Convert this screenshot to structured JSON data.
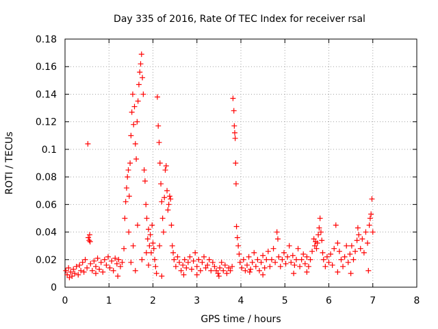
{
  "chart_data": {
    "type": "scatter",
    "title": "Day 335 of 2016, Rate Of TEC Index for receiver rsal",
    "xlabel": "GPS time / hours",
    "ylabel": "ROTI / TECUs",
    "xlim": [
      0,
      8
    ],
    "ylim": [
      0,
      0.18
    ],
    "xticks": [
      "0",
      "1",
      "2",
      "3",
      "4",
      "5",
      "6",
      "7",
      "8"
    ],
    "yticks": [
      "0",
      "0.02",
      "0.04",
      "0.06",
      "0.08",
      "0.1",
      "0.12",
      "0.14",
      "0.16",
      "0.18"
    ],
    "grid": true,
    "marker": "+",
    "color": "#ff0000",
    "series": [
      {
        "name": "ROTI",
        "points": [
          [
            0.02,
            0.012
          ],
          [
            0.05,
            0.009
          ],
          [
            0.08,
            0.014
          ],
          [
            0.1,
            0.007
          ],
          [
            0.13,
            0.011
          ],
          [
            0.16,
            0.008
          ],
          [
            0.19,
            0.013
          ],
          [
            0.22,
            0.01
          ],
          [
            0.26,
            0.015
          ],
          [
            0.3,
            0.009
          ],
          [
            0.33,
            0.016
          ],
          [
            0.36,
            0.012
          ],
          [
            0.4,
            0.018
          ],
          [
            0.43,
            0.011
          ],
          [
            0.46,
            0.02
          ],
          [
            0.5,
            0.014
          ],
          [
            0.52,
            0.104
          ],
          [
            0.53,
            0.036
          ],
          [
            0.55,
            0.034
          ],
          [
            0.56,
            0.038
          ],
          [
            0.57,
            0.033
          ],
          [
            0.58,
            0.017
          ],
          [
            0.62,
            0.012
          ],
          [
            0.66,
            0.019
          ],
          [
            0.7,
            0.015
          ],
          [
            0.74,
            0.021
          ],
          [
            0.78,
            0.013
          ],
          [
            0.82,
            0.018
          ],
          [
            0.86,
            0.011
          ],
          [
            0.9,
            0.02
          ],
          [
            0.94,
            0.016
          ],
          [
            0.98,
            0.022
          ],
          [
            1.02,
            0.014
          ],
          [
            1.06,
            0.019
          ],
          [
            1.1,
            0.012
          ],
          [
            1.14,
            0.021
          ],
          [
            1.18,
            0.017
          ],
          [
            1.22,
            0.02
          ],
          [
            1.26,
            0.015
          ],
          [
            1.3,
            0.018
          ],
          [
            1.34,
            0.028
          ],
          [
            1.36,
            0.05
          ],
          [
            1.38,
            0.062
          ],
          [
            1.4,
            0.072
          ],
          [
            1.42,
            0.08
          ],
          [
            1.44,
            0.085
          ],
          [
            1.46,
            0.066
          ],
          [
            1.48,
            0.09
          ],
          [
            1.5,
            0.11
          ],
          [
            1.52,
            0.127
          ],
          [
            1.54,
            0.14
          ],
          [
            1.56,
            0.118
          ],
          [
            1.58,
            0.131
          ],
          [
            1.6,
            0.104
          ],
          [
            1.62,
            0.093
          ],
          [
            1.64,
            0.12
          ],
          [
            1.66,
            0.135
          ],
          [
            1.68,
            0.147
          ],
          [
            1.7,
            0.156
          ],
          [
            1.72,
            0.162
          ],
          [
            1.74,
            0.169
          ],
          [
            1.76,
            0.152
          ],
          [
            1.78,
            0.14
          ],
          [
            1.8,
            0.085
          ],
          [
            1.82,
            0.077
          ],
          [
            1.84,
            0.06
          ],
          [
            1.86,
            0.05
          ],
          [
            1.88,
            0.035
          ],
          [
            1.9,
            0.042
          ],
          [
            1.92,
            0.03
          ],
          [
            1.94,
            0.038
          ],
          [
            1.96,
            0.025
          ],
          [
            1.98,
            0.045
          ],
          [
            2.0,
            0.032
          ],
          [
            2.02,
            0.028
          ],
          [
            2.04,
            0.02
          ],
          [
            2.06,
            0.015
          ],
          [
            2.08,
            0.01
          ],
          [
            2.1,
            0.138
          ],
          [
            2.12,
            0.117
          ],
          [
            2.14,
            0.105
          ],
          [
            2.16,
            0.09
          ],
          [
            2.18,
            0.075
          ],
          [
            2.2,
            0.062
          ],
          [
            2.22,
            0.05
          ],
          [
            2.24,
            0.04
          ],
          [
            2.26,
            0.065
          ],
          [
            2.28,
            0.085
          ],
          [
            2.3,
            0.088
          ],
          [
            2.32,
            0.07
          ],
          [
            2.34,
            0.056
          ],
          [
            2.36,
            0.06
          ],
          [
            2.38,
            0.066
          ],
          [
            2.4,
            0.064
          ],
          [
            2.42,
            0.045
          ],
          [
            2.44,
            0.03
          ],
          [
            2.46,
            0.025
          ],
          [
            2.48,
            0.02
          ],
          [
            2.52,
            0.015
          ],
          [
            2.56,
            0.022
          ],
          [
            2.6,
            0.018
          ],
          [
            2.64,
            0.012
          ],
          [
            2.68,
            0.016
          ],
          [
            2.72,
            0.02
          ],
          [
            2.76,
            0.014
          ],
          [
            2.8,
            0.018
          ],
          [
            2.84,
            0.022
          ],
          [
            2.88,
            0.013
          ],
          [
            2.92,
            0.019
          ],
          [
            2.96,
            0.025
          ],
          [
            3.0,
            0.015
          ],
          [
            3.04,
            0.02
          ],
          [
            3.08,
            0.012
          ],
          [
            3.12,
            0.018
          ],
          [
            3.16,
            0.022
          ],
          [
            3.2,
            0.014
          ],
          [
            3.24,
            0.016
          ],
          [
            3.28,
            0.02
          ],
          [
            3.32,
            0.012
          ],
          [
            3.36,
            0.018
          ],
          [
            3.4,
            0.015
          ],
          [
            3.44,
            0.012
          ],
          [
            3.48,
            0.01
          ],
          [
            3.52,
            0.014
          ],
          [
            3.56,
            0.018
          ],
          [
            3.6,
            0.012
          ],
          [
            3.64,
            0.016
          ],
          [
            3.68,
            0.01
          ],
          [
            3.72,
            0.014
          ],
          [
            3.76,
            0.012
          ],
          [
            3.8,
            0.015
          ],
          [
            3.82,
            0.137
          ],
          [
            3.84,
            0.128
          ],
          [
            3.85,
            0.117
          ],
          [
            3.86,
            0.112
          ],
          [
            3.87,
            0.108
          ],
          [
            3.88,
            0.09
          ],
          [
            3.89,
            0.075
          ],
          [
            3.9,
            0.044
          ],
          [
            3.92,
            0.036
          ],
          [
            3.94,
            0.03
          ],
          [
            3.96,
            0.024
          ],
          [
            3.98,
            0.018
          ],
          [
            4.02,
            0.014
          ],
          [
            4.06,
            0.02
          ],
          [
            4.1,
            0.012
          ],
          [
            4.14,
            0.016
          ],
          [
            4.18,
            0.022
          ],
          [
            4.22,
            0.013
          ],
          [
            4.26,
            0.018
          ],
          [
            4.3,
            0.025
          ],
          [
            4.34,
            0.015
          ],
          [
            4.38,
            0.02
          ],
          [
            4.42,
            0.012
          ],
          [
            4.46,
            0.018
          ],
          [
            4.5,
            0.023
          ],
          [
            4.54,
            0.014
          ],
          [
            4.58,
            0.02
          ],
          [
            4.62,
            0.026
          ],
          [
            4.66,
            0.015
          ],
          [
            4.7,
            0.02
          ],
          [
            4.74,
            0.028
          ],
          [
            4.78,
            0.018
          ],
          [
            4.82,
            0.04
          ],
          [
            4.84,
            0.035
          ],
          [
            4.86,
            0.022
          ],
          [
            4.9,
            0.015
          ],
          [
            4.94,
            0.02
          ],
          [
            4.98,
            0.025
          ],
          [
            5.02,
            0.017
          ],
          [
            5.06,
            0.022
          ],
          [
            5.1,
            0.03
          ],
          [
            5.14,
            0.018
          ],
          [
            5.18,
            0.023
          ],
          [
            5.22,
            0.016
          ],
          [
            5.26,
            0.02
          ],
          [
            5.3,
            0.028
          ],
          [
            5.34,
            0.015
          ],
          [
            5.38,
            0.02
          ],
          [
            5.42,
            0.024
          ],
          [
            5.46,
            0.017
          ],
          [
            5.5,
            0.022
          ],
          [
            5.54,
            0.015
          ],
          [
            5.58,
            0.02
          ],
          [
            5.62,
            0.026
          ],
          [
            5.66,
            0.035
          ],
          [
            5.68,
            0.03
          ],
          [
            5.7,
            0.033
          ],
          [
            5.72,
            0.028
          ],
          [
            5.74,
            0.032
          ],
          [
            5.76,
            0.038
          ],
          [
            5.78,
            0.043
          ],
          [
            5.8,
            0.05
          ],
          [
            5.82,
            0.04
          ],
          [
            5.84,
            0.034
          ],
          [
            5.86,
            0.025
          ],
          [
            5.88,
            0.02
          ],
          [
            5.92,
            0.015
          ],
          [
            5.96,
            0.022
          ],
          [
            6.0,
            0.018
          ],
          [
            6.04,
            0.024
          ],
          [
            6.08,
            0.016
          ],
          [
            6.12,
            0.028
          ],
          [
            6.16,
            0.045
          ],
          [
            6.2,
            0.032
          ],
          [
            6.24,
            0.026
          ],
          [
            6.28,
            0.02
          ],
          [
            6.32,
            0.015
          ],
          [
            6.36,
            0.022
          ],
          [
            6.4,
            0.03
          ],
          [
            6.44,
            0.018
          ],
          [
            6.48,
            0.024
          ],
          [
            6.52,
            0.03
          ],
          [
            6.56,
            0.02
          ],
          [
            6.6,
            0.026
          ],
          [
            6.64,
            0.034
          ],
          [
            6.66,
            0.043
          ],
          [
            6.68,
            0.038
          ],
          [
            6.72,
            0.028
          ],
          [
            6.76,
            0.035
          ],
          [
            6.8,
            0.025
          ],
          [
            6.84,
            0.04
          ],
          [
            6.88,
            0.032
          ],
          [
            6.92,
            0.045
          ],
          [
            6.94,
            0.05
          ],
          [
            6.96,
            0.053
          ],
          [
            6.98,
            0.064
          ],
          [
            7.0,
            0.04
          ],
          [
            6.5,
            0.01
          ],
          [
            5.5,
            0.011
          ],
          [
            4.5,
            0.009
          ],
          [
            3.5,
            0.008
          ],
          [
            2.7,
            0.009
          ],
          [
            1.6,
            0.012
          ],
          [
            1.2,
            0.008
          ],
          [
            0.7,
            0.01
          ],
          [
            6.9,
            0.012
          ],
          [
            6.2,
            0.011
          ],
          [
            5.2,
            0.01
          ],
          [
            4.2,
            0.011
          ],
          [
            3.0,
            0.009
          ],
          [
            2.2,
            0.008
          ],
          [
            1.9,
            0.016
          ],
          [
            1.75,
            0.02
          ],
          [
            1.5,
            0.018
          ],
          [
            1.45,
            0.04
          ],
          [
            1.55,
            0.03
          ],
          [
            1.65,
            0.045
          ],
          [
            1.85,
            0.025
          ],
          [
            2.15,
            0.03
          ]
        ]
      }
    ]
  }
}
